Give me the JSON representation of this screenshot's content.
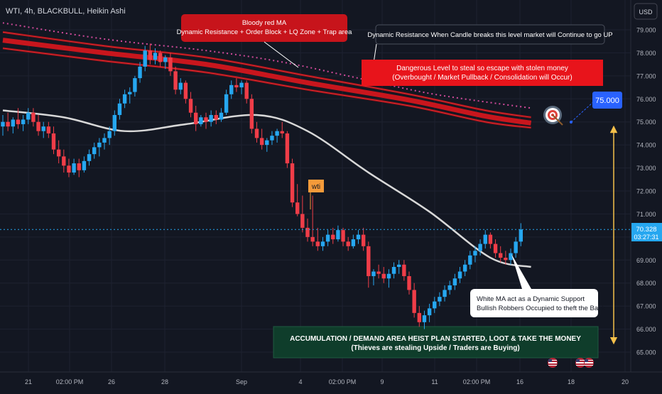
{
  "symbol_title": "WTI, 4h, BLACKBULL, Heikin Ashi",
  "currency_button": "USD",
  "price_badge": {
    "price": "70.328",
    "countdown": "03:27:31"
  },
  "colors": {
    "bg": "#131722",
    "up": "#26a7f0",
    "down": "#ef3d48",
    "white_ma": "#d8d8d8",
    "red_ma": "#c8161d",
    "grid": "#1e2230"
  },
  "annotations": {
    "red_ma_box": {
      "line1": "Bloody red MA",
      "line2": "Dynamic Resistance + Order Block + LQ Zone + Trap area"
    },
    "breakout_box": {
      "text": "Dynamic Resistance When Candle breaks this level market will Continue to go UP"
    },
    "danger_box": {
      "line1": "Dangerous Level to steal so escape with stolen money",
      "line2": "(Overbought / Market Pullback / Consolidation will Occur)"
    },
    "target_label": "75.000",
    "wti_label": "wti",
    "white_ma_box": {
      "line1": "White MA act as a Dynamic Support",
      "line2": "Bullish Robbers Occupied to theft the Bank"
    },
    "accumulation_box": {
      "line1": "ACCUMULATION / DEMAND AREA HEIST PLAN STARTED, LOOT & TAKE THE MONEY",
      "line2": "(Thieves are stealing Upside / Traders are Buying)"
    }
  },
  "chart_data": {
    "type": "candlestick",
    "title": "WTI, 4h, BLACKBULL, Heikin Ashi",
    "ylim": [
      64.5,
      79.8
    ],
    "y_ticks": [
      "79.000",
      "78.000",
      "77.000",
      "76.000",
      "75.000",
      "74.000",
      "73.000",
      "72.000",
      "71.000",
      "70.000",
      "69.000",
      "68.000",
      "67.000",
      "66.000",
      "65.000"
    ],
    "x_ticks": [
      "21",
      "02:00 PM",
      "26",
      "28",
      "Sep",
      "4",
      "02:00 PM",
      "9",
      "11",
      "02:00 PM",
      "16",
      "18",
      "20"
    ],
    "last_price": 70.328,
    "target_price": 75.0,
    "candles": [
      {
        "o": 74.8,
        "h": 75.3,
        "l": 74.4,
        "c": 75.0
      },
      {
        "o": 75.0,
        "h": 75.4,
        "l": 74.6,
        "c": 74.8
      },
      {
        "o": 74.8,
        "h": 75.2,
        "l": 74.5,
        "c": 75.1
      },
      {
        "o": 75.1,
        "h": 75.6,
        "l": 74.7,
        "c": 74.9
      },
      {
        "o": 74.9,
        "h": 75.3,
        "l": 74.6,
        "c": 75.1
      },
      {
        "o": 75.1,
        "h": 75.6,
        "l": 74.9,
        "c": 75.4
      },
      {
        "o": 75.4,
        "h": 75.6,
        "l": 74.8,
        "c": 75.0
      },
      {
        "o": 75.0,
        "h": 75.3,
        "l": 74.4,
        "c": 74.6
      },
      {
        "o": 74.6,
        "h": 75.0,
        "l": 74.3,
        "c": 74.8
      },
      {
        "o": 74.8,
        "h": 75.0,
        "l": 74.3,
        "c": 74.5
      },
      {
        "o": 74.5,
        "h": 74.8,
        "l": 73.6,
        "c": 73.8
      },
      {
        "o": 73.8,
        "h": 74.2,
        "l": 73.2,
        "c": 73.5
      },
      {
        "o": 73.5,
        "h": 73.8,
        "l": 72.8,
        "c": 73.1
      },
      {
        "o": 73.1,
        "h": 73.4,
        "l": 72.6,
        "c": 72.8
      },
      {
        "o": 72.8,
        "h": 73.4,
        "l": 72.7,
        "c": 73.2
      },
      {
        "o": 73.2,
        "h": 73.4,
        "l": 72.6,
        "c": 72.9
      },
      {
        "o": 72.9,
        "h": 73.5,
        "l": 72.8,
        "c": 73.3
      },
      {
        "o": 73.3,
        "h": 73.8,
        "l": 73.1,
        "c": 73.6
      },
      {
        "o": 73.6,
        "h": 74.1,
        "l": 73.4,
        "c": 73.9
      },
      {
        "o": 73.9,
        "h": 74.3,
        "l": 73.5,
        "c": 74.1
      },
      {
        "o": 74.1,
        "h": 74.5,
        "l": 73.8,
        "c": 74.3
      },
      {
        "o": 74.3,
        "h": 74.8,
        "l": 74.0,
        "c": 74.6
      },
      {
        "o": 74.6,
        "h": 75.5,
        "l": 74.4,
        "c": 75.3
      },
      {
        "o": 75.3,
        "h": 76.0,
        "l": 75.1,
        "c": 75.8
      },
      {
        "o": 75.8,
        "h": 76.4,
        "l": 75.6,
        "c": 76.2
      },
      {
        "o": 76.2,
        "h": 76.5,
        "l": 75.8,
        "c": 76.3
      },
      {
        "o": 76.3,
        "h": 77.0,
        "l": 76.1,
        "c": 76.9
      },
      {
        "o": 76.9,
        "h": 77.6,
        "l": 76.7,
        "c": 77.4
      },
      {
        "o": 77.4,
        "h": 78.3,
        "l": 77.2,
        "c": 78.1
      },
      {
        "o": 78.1,
        "h": 78.4,
        "l": 77.5,
        "c": 77.7
      },
      {
        "o": 77.7,
        "h": 78.2,
        "l": 77.5,
        "c": 78.0
      },
      {
        "o": 78.0,
        "h": 78.1,
        "l": 77.4,
        "c": 77.6
      },
      {
        "o": 77.6,
        "h": 77.9,
        "l": 77.3,
        "c": 77.8
      },
      {
        "o": 77.8,
        "h": 78.0,
        "l": 77.0,
        "c": 77.2
      },
      {
        "o": 77.2,
        "h": 77.4,
        "l": 76.2,
        "c": 76.4
      },
      {
        "o": 76.4,
        "h": 76.9,
        "l": 76.2,
        "c": 76.7
      },
      {
        "o": 76.7,
        "h": 76.8,
        "l": 75.8,
        "c": 76.0
      },
      {
        "o": 76.0,
        "h": 76.3,
        "l": 75.2,
        "c": 75.4
      },
      {
        "o": 75.4,
        "h": 75.7,
        "l": 74.6,
        "c": 74.9
      },
      {
        "o": 74.9,
        "h": 75.3,
        "l": 74.8,
        "c": 75.2
      },
      {
        "o": 75.2,
        "h": 75.4,
        "l": 74.7,
        "c": 75.0
      },
      {
        "o": 75.0,
        "h": 75.5,
        "l": 74.8,
        "c": 75.3
      },
      {
        "o": 75.3,
        "h": 75.5,
        "l": 74.9,
        "c": 75.1
      },
      {
        "o": 75.1,
        "h": 75.6,
        "l": 75.0,
        "c": 75.4
      },
      {
        "o": 75.4,
        "h": 76.4,
        "l": 75.3,
        "c": 76.2
      },
      {
        "o": 76.2,
        "h": 76.8,
        "l": 76.0,
        "c": 76.6
      },
      {
        "o": 76.6,
        "h": 76.9,
        "l": 76.3,
        "c": 76.5
      },
      {
        "o": 76.5,
        "h": 76.8,
        "l": 76.2,
        "c": 76.7
      },
      {
        "o": 76.7,
        "h": 76.8,
        "l": 75.8,
        "c": 76.0
      },
      {
        "o": 76.0,
        "h": 76.2,
        "l": 74.5,
        "c": 74.7
      },
      {
        "o": 74.7,
        "h": 75.0,
        "l": 74.1,
        "c": 74.3
      },
      {
        "o": 74.3,
        "h": 74.7,
        "l": 73.8,
        "c": 74.0
      },
      {
        "o": 74.0,
        "h": 74.3,
        "l": 73.7,
        "c": 74.2
      },
      {
        "o": 74.2,
        "h": 74.6,
        "l": 74.0,
        "c": 74.4
      },
      {
        "o": 74.4,
        "h": 74.7,
        "l": 74.1,
        "c": 74.6
      },
      {
        "o": 74.6,
        "h": 75.0,
        "l": 74.3,
        "c": 74.5
      },
      {
        "o": 74.5,
        "h": 74.6,
        "l": 73.0,
        "c": 73.2
      },
      {
        "o": 73.2,
        "h": 73.4,
        "l": 71.3,
        "c": 71.5
      },
      {
        "o": 71.5,
        "h": 72.3,
        "l": 70.9,
        "c": 71.0
      },
      {
        "o": 71.0,
        "h": 71.8,
        "l": 70.2,
        "c": 70.4
      },
      {
        "o": 70.4,
        "h": 70.8,
        "l": 69.8,
        "c": 70.0
      },
      {
        "o": 70.0,
        "h": 71.8,
        "l": 69.6,
        "c": 69.8
      },
      {
        "o": 69.8,
        "h": 70.4,
        "l": 69.4,
        "c": 69.6
      },
      {
        "o": 69.6,
        "h": 70.0,
        "l": 69.4,
        "c": 69.8
      },
      {
        "o": 69.8,
        "h": 70.3,
        "l": 69.6,
        "c": 70.1
      },
      {
        "o": 70.1,
        "h": 70.4,
        "l": 69.7,
        "c": 69.9
      },
      {
        "o": 69.9,
        "h": 70.5,
        "l": 69.8,
        "c": 70.3
      },
      {
        "o": 70.3,
        "h": 70.4,
        "l": 69.6,
        "c": 69.8
      },
      {
        "o": 69.8,
        "h": 70.0,
        "l": 69.4,
        "c": 69.6
      },
      {
        "o": 69.6,
        "h": 70.1,
        "l": 69.5,
        "c": 69.9
      },
      {
        "o": 69.9,
        "h": 70.3,
        "l": 69.7,
        "c": 70.1
      },
      {
        "o": 70.1,
        "h": 70.4,
        "l": 69.4,
        "c": 69.6
      },
      {
        "o": 69.6,
        "h": 69.8,
        "l": 67.8,
        "c": 68.3
      },
      {
        "o": 68.3,
        "h": 68.6,
        "l": 67.9,
        "c": 68.5
      },
      {
        "o": 68.5,
        "h": 68.8,
        "l": 68.2,
        "c": 68.4
      },
      {
        "o": 68.4,
        "h": 68.7,
        "l": 68.0,
        "c": 68.2
      },
      {
        "o": 68.2,
        "h": 68.6,
        "l": 67.8,
        "c": 68.4
      },
      {
        "o": 68.4,
        "h": 68.9,
        "l": 68.2,
        "c": 68.7
      },
      {
        "o": 68.7,
        "h": 69.0,
        "l": 68.4,
        "c": 68.8
      },
      {
        "o": 68.8,
        "h": 69.0,
        "l": 68.1,
        "c": 68.3
      },
      {
        "o": 68.3,
        "h": 68.5,
        "l": 67.5,
        "c": 67.7
      },
      {
        "o": 67.7,
        "h": 68.0,
        "l": 66.5,
        "c": 66.7
      },
      {
        "o": 66.7,
        "h": 67.0,
        "l": 66.1,
        "c": 66.3
      },
      {
        "o": 66.3,
        "h": 66.8,
        "l": 66.0,
        "c": 66.6
      },
      {
        "o": 66.6,
        "h": 67.1,
        "l": 66.3,
        "c": 66.9
      },
      {
        "o": 66.9,
        "h": 67.4,
        "l": 66.7,
        "c": 67.2
      },
      {
        "o": 67.2,
        "h": 67.6,
        "l": 67.0,
        "c": 67.4
      },
      {
        "o": 67.4,
        "h": 67.9,
        "l": 67.2,
        "c": 67.7
      },
      {
        "o": 67.7,
        "h": 68.1,
        "l": 67.5,
        "c": 67.9
      },
      {
        "o": 67.9,
        "h": 68.4,
        "l": 67.7,
        "c": 68.2
      },
      {
        "o": 68.2,
        "h": 68.7,
        "l": 68.0,
        "c": 68.5
      },
      {
        "o": 68.5,
        "h": 69.0,
        "l": 68.3,
        "c": 68.8
      },
      {
        "o": 68.8,
        "h": 69.4,
        "l": 68.6,
        "c": 69.2
      },
      {
        "o": 69.2,
        "h": 69.6,
        "l": 68.9,
        "c": 69.4
      },
      {
        "o": 69.4,
        "h": 69.9,
        "l": 69.2,
        "c": 69.7
      },
      {
        "o": 69.7,
        "h": 70.3,
        "l": 69.5,
        "c": 70.1
      },
      {
        "o": 70.1,
        "h": 70.2,
        "l": 69.5,
        "c": 69.7
      },
      {
        "o": 69.7,
        "h": 69.9,
        "l": 69.1,
        "c": 69.3
      },
      {
        "o": 69.3,
        "h": 69.6,
        "l": 68.9,
        "c": 69.1
      },
      {
        "o": 69.1,
        "h": 69.4,
        "l": 68.8,
        "c": 69.0
      },
      {
        "o": 69.0,
        "h": 69.5,
        "l": 68.8,
        "c": 69.3
      },
      {
        "o": 69.3,
        "h": 70.0,
        "l": 69.1,
        "c": 69.8
      },
      {
        "o": 69.8,
        "h": 70.6,
        "l": 69.6,
        "c": 70.328
      }
    ],
    "white_ma": [
      [
        0,
        75.5
      ],
      [
        12,
        75.2
      ],
      [
        24,
        74.6
      ],
      [
        36,
        74.9
      ],
      [
        50,
        75.3
      ],
      [
        60,
        74.6
      ],
      [
        72,
        72.8
      ],
      [
        84,
        71.1
      ],
      [
        96,
        69.1
      ],
      [
        104,
        68.7
      ]
    ],
    "red_ma_outer_top": [
      [
        0,
        78.9
      ],
      [
        20,
        78.3
      ],
      [
        40,
        77.8
      ],
      [
        60,
        77.0
      ],
      [
        80,
        76.2
      ],
      [
        95,
        75.5
      ],
      [
        104,
        75.2
      ]
    ],
    "red_ma_core": [
      [
        0,
        78.55
      ],
      [
        20,
        78.0
      ],
      [
        40,
        77.5
      ],
      [
        60,
        76.7
      ],
      [
        80,
        75.95
      ],
      [
        95,
        75.25
      ],
      [
        104,
        74.95
      ]
    ],
    "red_ma_outer_bottom": [
      [
        0,
        78.2
      ],
      [
        20,
        77.65
      ],
      [
        40,
        77.15
      ],
      [
        60,
        76.4
      ],
      [
        80,
        75.7
      ],
      [
        95,
        75.0
      ],
      [
        104,
        74.75
      ]
    ],
    "dotted_ma": [
      [
        0,
        79.3
      ],
      [
        20,
        78.6
      ],
      [
        40,
        78.1
      ],
      [
        55,
        77.6
      ],
      [
        70,
        76.9
      ],
      [
        85,
        76.2
      ],
      [
        104,
        75.6
      ]
    ]
  }
}
